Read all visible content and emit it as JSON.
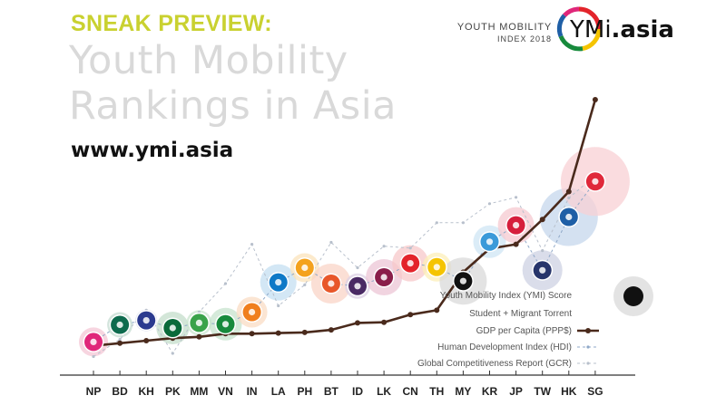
{
  "header": {
    "kicker": "SNEAK PREVIEW:",
    "title_line1": "Youth Mobility",
    "title_line2": "Rankings in Asia",
    "url": "www.ymi.asia"
  },
  "logo": {
    "line1": "YOUTH MOBILITY",
    "line2": "INDEX 2018",
    "brand_prefix": "YMi",
    "brand_suffix": ".asia"
  },
  "legend": {
    "ymi": "Youth Mobility Index (YMI) Score",
    "torrent": "Student + Migrant Torrent",
    "gdp": "GDP per Capita (PPP$)",
    "hdi": "Human Development Index (HDI)",
    "gcr": "Global Competitiveness Report (GCR)"
  },
  "colors": {
    "kicker": "#c9d130",
    "gdp_line": "#4a2a1c",
    "hdi_line": "#8fa8c8",
    "gcr_line": "#b8c0cc",
    "axis": "#333333"
  },
  "chart_data": {
    "type": "line",
    "categories": [
      "NP",
      "BD",
      "KH",
      "PK",
      "MM",
      "VN",
      "IN",
      "LA",
      "PH",
      "BT",
      "ID",
      "LK",
      "CN",
      "TH",
      "MY",
      "KR",
      "JP",
      "TW",
      "HK",
      "SG"
    ],
    "series": [
      {
        "name": "GDP per Capita (PPP$)",
        "values": [
          0.2,
          0.6,
          1.0,
          1.4,
          1.6,
          2.1,
          2.1,
          2.2,
          2.3,
          2.7,
          3.8,
          3.9,
          5.1,
          5.8,
          11.8,
          15.5,
          16.2,
          20.1,
          24.5,
          39.0
        ]
      },
      {
        "name": "Human Development Index (HDI)",
        "values": [
          0.8,
          3.5,
          4.2,
          3.0,
          3.8,
          3.6,
          5.5,
          10.2,
          12.5,
          10.0,
          9.6,
          11.0,
          13.2,
          12.6,
          10.4,
          16.6,
          19.2,
          12.1,
          20.5,
          26.1
        ]
      },
      {
        "name": "Global Competitiveness Report (GCR)",
        "values": [
          -1.5,
          1.2,
          5.8,
          -1.0,
          5.5,
          10.0,
          16.2,
          6.5,
          9.8,
          16.5,
          12.5,
          15.9,
          15.6,
          19.6,
          19.6,
          22.6,
          23.6,
          15.2,
          23.5,
          27.0
        ]
      }
    ],
    "flags": [
      {
        "code": "NP",
        "color": "#e0277a",
        "halo": "#f4c7d6",
        "torrent": 0.8
      },
      {
        "code": "BD",
        "color": "#0e6b4e",
        "halo": "#c6dcd2",
        "torrent": 0.7
      },
      {
        "code": "KH",
        "color": "#2b3a8f",
        "halo": "#cdd3e8",
        "torrent": 0.6
      },
      {
        "code": "PK",
        "color": "#0a6a3a",
        "halo": "#c4ddcb",
        "torrent": 0.9
      },
      {
        "code": "MM",
        "color": "#3aa34a",
        "halo": "#cbe6cf",
        "torrent": 0.7
      },
      {
        "code": "VN",
        "color": "#178a3c",
        "halo": "#c7e3ce",
        "torrent": 0.9
      },
      {
        "code": "IN",
        "color": "#f07f1e",
        "halo": "#fadcc4",
        "torrent": 0.85
      },
      {
        "code": "LA",
        "color": "#0f79c7",
        "halo": "#c4dff2",
        "torrent": 1.0
      },
      {
        "code": "PH",
        "color": "#f4a21c",
        "halo": "#fbe3bb",
        "torrent": 0.8
      },
      {
        "code": "BT",
        "color": "#e8572a",
        "halo": "#f9d4c7",
        "torrent": 1.1
      },
      {
        "code": "ID",
        "color": "#4a2a64",
        "halo": "#dcd0e4",
        "torrent": 0.7
      },
      {
        "code": "LK",
        "color": "#8a1e4a",
        "halo": "#ecc6d6",
        "torrent": 1.0
      },
      {
        "code": "CN",
        "color": "#e3242b",
        "halo": "#f7c8ca",
        "torrent": 1.0
      },
      {
        "code": "TH",
        "color": "#f5c400",
        "halo": "#fcefb8",
        "torrent": 0.8
      },
      {
        "code": "MY",
        "color": "#111111",
        "halo": "#d9d9d9",
        "torrent": 1.3
      },
      {
        "code": "KR",
        "color": "#3b9ad9",
        "halo": "#cfe5f4",
        "torrent": 0.9
      },
      {
        "code": "JP",
        "color": "#d61f3c",
        "halo": "#f6c9d0",
        "torrent": 1.0
      },
      {
        "code": "TW",
        "color": "#27356b",
        "halo": "#cdd2e3",
        "torrent": 1.1
      },
      {
        "code": "HK",
        "color": "#1f5fa6",
        "halo": "#c6d7ec",
        "torrent": 1.6
      },
      {
        "code": "SG",
        "color": "#e0293a",
        "halo": "#f8d0d4",
        "torrent": 1.9
      }
    ],
    "xlabel": "",
    "ylabel": "",
    "grid": false,
    "legend_placement": "bottom-right"
  }
}
